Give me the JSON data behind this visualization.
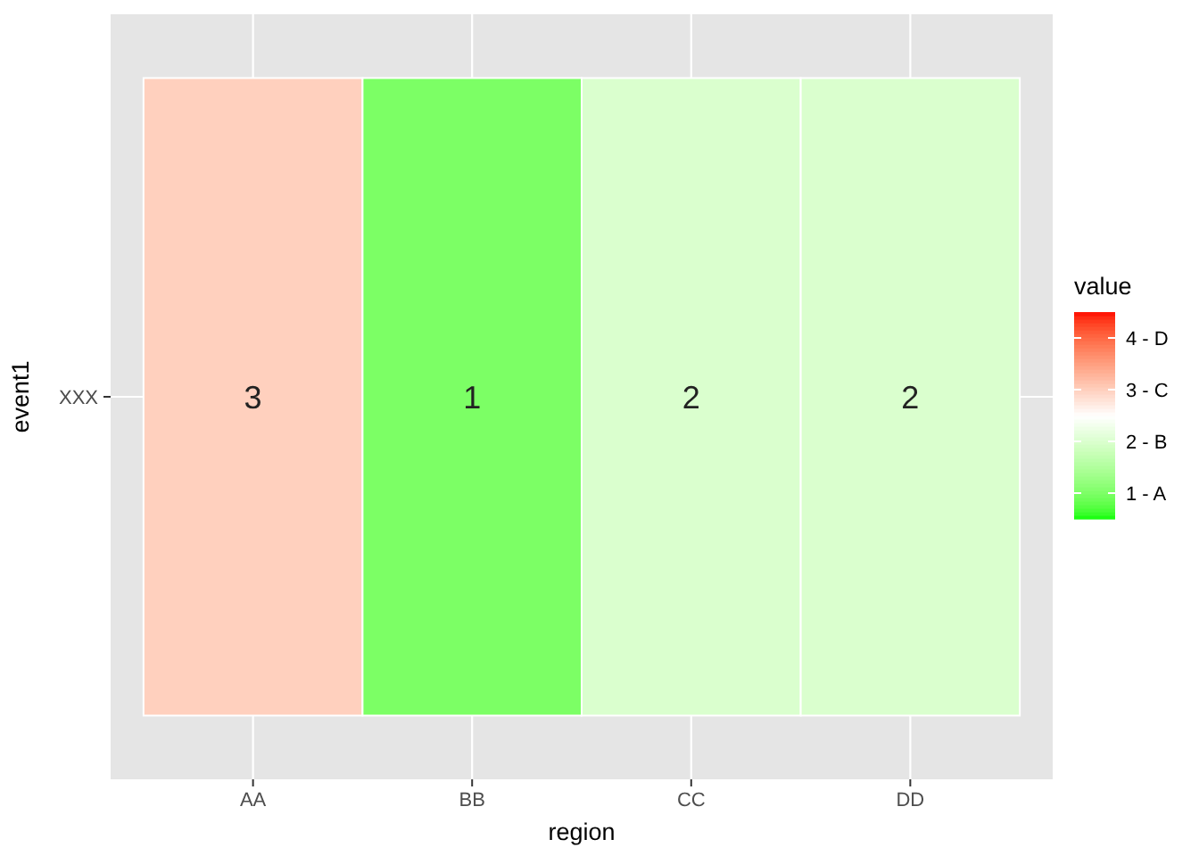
{
  "chart_data": {
    "type": "heatmap",
    "xlabel": "region",
    "ylabel": "event1",
    "legend_title": "value",
    "categories": [
      "AA",
      "BB",
      "CC",
      "DD"
    ],
    "y_categories": [
      "XXX"
    ],
    "cells": [
      [
        3,
        1,
        2,
        2
      ]
    ],
    "data_labels": true,
    "clim": [
      0.5,
      4.5
    ],
    "cticks": [
      {
        "value": 1,
        "label": "1 - A"
      },
      {
        "value": 2,
        "label": "2 - B"
      },
      {
        "value": 3,
        "label": "3 - C"
      },
      {
        "value": 4,
        "label": "4 - D"
      }
    ],
    "colors": [
      "#00ff00",
      "#ffffff",
      "#ff0000"
    ],
    "grid": true
  }
}
